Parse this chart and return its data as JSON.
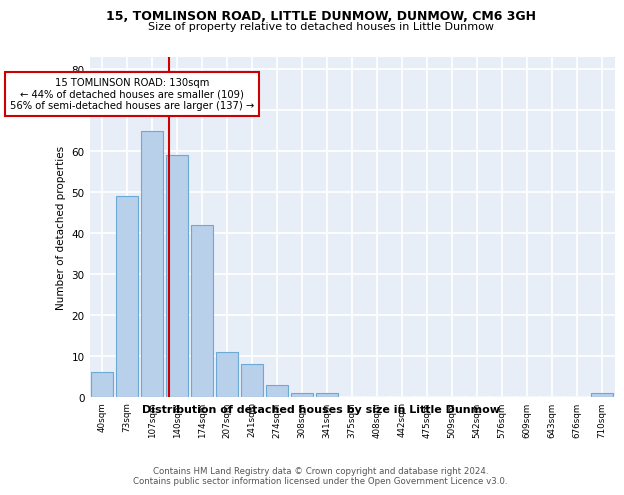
{
  "title1": "15, TOMLINSON ROAD, LITTLE DUNMOW, DUNMOW, CM6 3GH",
  "title2": "Size of property relative to detached houses in Little Dunmow",
  "xlabel": "Distribution of detached houses by size in Little Dunmow",
  "ylabel": "Number of detached properties",
  "bar_labels": [
    "40sqm",
    "73sqm",
    "107sqm",
    "140sqm",
    "174sqm",
    "207sqm",
    "241sqm",
    "274sqm",
    "308sqm",
    "341sqm",
    "375sqm",
    "408sqm",
    "442sqm",
    "475sqm",
    "509sqm",
    "542sqm",
    "576sqm",
    "609sqm",
    "643sqm",
    "676sqm",
    "710sqm"
  ],
  "bar_values": [
    6,
    49,
    65,
    59,
    42,
    11,
    8,
    3,
    1,
    1,
    0,
    0,
    0,
    0,
    0,
    0,
    0,
    0,
    0,
    0,
    1
  ],
  "bar_color": "#b8d0ea",
  "bar_edge_color": "#6aaad4",
  "bg_color": "#e8eef8",
  "grid_color": "#ffffff",
  "vline_x": 2.5,
  "vline_color": "#cc0000",
  "annotation_text": "15 TOMLINSON ROAD: 130sqm\n← 44% of detached houses are smaller (109)\n56% of semi-detached houses are larger (137) →",
  "annotation_box_color": "#ffffff",
  "annotation_box_edge": "#cc0000",
  "ylim": [
    0,
    83
  ],
  "yticks": [
    0,
    10,
    20,
    30,
    40,
    50,
    60,
    70,
    80
  ],
  "footer1": "Contains HM Land Registry data © Crown copyright and database right 2024.",
  "footer2": "Contains public sector information licensed under the Open Government Licence v3.0."
}
